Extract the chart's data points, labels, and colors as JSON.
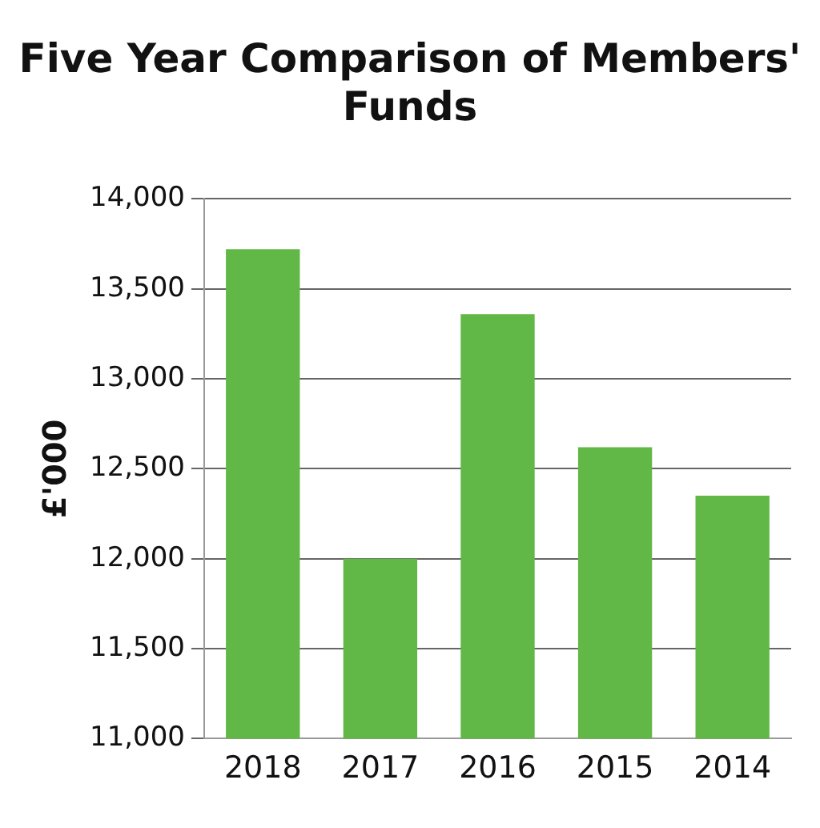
{
  "chart_data": {
    "type": "bar",
    "title": "Five Year Comparison of Members' Funds",
    "ylabel": "£'000",
    "categories": [
      "2018",
      "2017",
      "2016",
      "2015",
      "2014"
    ],
    "values": [
      13720,
      12000,
      13360,
      12620,
      12350
    ],
    "color": "#62b846",
    "ylim": [
      11000,
      14000
    ],
    "yticks": [
      {
        "value": 11000,
        "label": "11,000"
      },
      {
        "value": 11500,
        "label": "11,500"
      },
      {
        "value": 12000,
        "label": "12,000"
      },
      {
        "value": 12500,
        "label": "12,500"
      },
      {
        "value": 13000,
        "label": "13,000"
      },
      {
        "value": 13500,
        "label": "13,500"
      },
      {
        "value": 14000,
        "label": "14,000"
      }
    ],
    "grid": "y"
  }
}
